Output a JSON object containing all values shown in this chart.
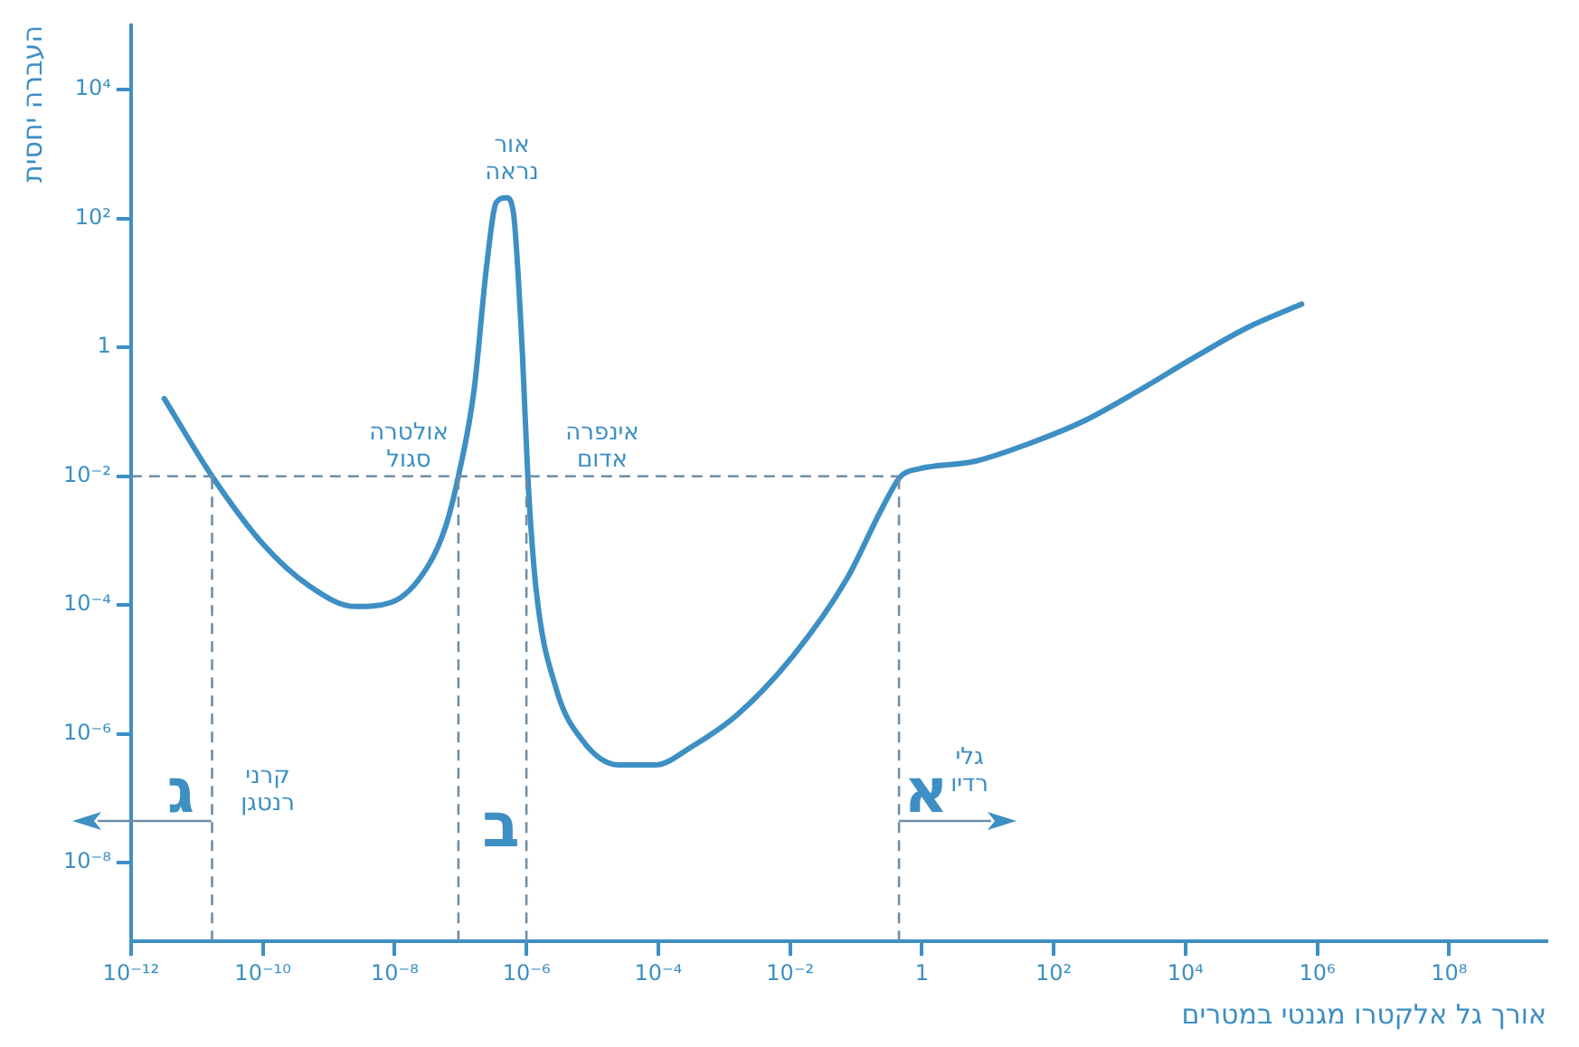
{
  "chart_data": {
    "type": "line",
    "xlabel": "אורך גל אלקטרו מגנטי במטרים",
    "ylabel": "העברה יחסית",
    "log": "xy",
    "grid": false,
    "marker": "none",
    "line_style": "solid",
    "xlim": [
      1e-12,
      3000000000.0
    ],
    "ylim": [
      6e-10,
      100000.0
    ],
    "xticks": [
      {
        "value": 1e-12,
        "label": "10⁻¹²"
      },
      {
        "value": 1e-10,
        "label": "10⁻¹⁰"
      },
      {
        "value": 1e-08,
        "label": "10⁻⁸"
      },
      {
        "value": 1e-06,
        "label": "10⁻⁶"
      },
      {
        "value": 0.0001,
        "label": "10⁻⁴"
      },
      {
        "value": 0.01,
        "label": "10⁻²"
      },
      1,
      {
        "value": 100,
        "label": "10²"
      },
      {
        "value": 10000,
        "label": "10⁴"
      },
      {
        "value": 1000000.0,
        "label": "10⁶"
      },
      {
        "value": 100000000.0,
        "label": "10⁸"
      }
    ],
    "yticks": [
      {
        "value": 1e-08,
        "label": "10⁻⁸"
      },
      {
        "value": 1e-06,
        "label": "10⁻⁶"
      },
      {
        "value": 0.0001,
        "label": "10⁻⁴"
      },
      {
        "value": 0.01,
        "label": "10⁻²"
      },
      1,
      {
        "value": 100,
        "label": "10²"
      },
      {
        "value": 10000,
        "label": "10⁴"
      }
    ],
    "x": [
      3.2e-12,
      1.7e-11,
      1e-10,
      5e-10,
      2.5e-09,
      8.9e-09,
      3.2e-08,
      6e-08,
      9.3e-08,
      1.6e-07,
      2.5e-07,
      3.5e-07,
      5e-07,
      6.3e-07,
      8.7e-07,
      1.05e-06,
      1.4e-06,
      2.8e-06,
      7.1e-06,
      2.5e-05,
      9.1e-05,
      0.00032,
      0.0016,
      0.011,
      0.072,
      0.25,
      0.48,
      0.89,
      6.3,
      42,
      280,
      1900,
      13000,
      85000,
      580000
    ],
    "series": [
      {
        "color": "#3d8fc4",
        "values": [
          0.16,
          0.01,
          0.00089,
          0.0002,
          9.5e-05,
          0.00011,
          0.0004,
          0.0017,
          0.01,
          0.21,
          19,
          180,
          210,
          130,
          0.79,
          0.01,
          0.00018,
          5.2e-06,
          7.9e-07,
          3.3e-07,
          3.3e-07,
          6.3e-07,
          2e-06,
          1.6e-05,
          0.00025,
          0.0032,
          0.01,
          0.013,
          0.017,
          0.032,
          0.071,
          0.21,
          0.68,
          2.0,
          4.7
        ]
      }
    ],
    "ref_lines": [
      {
        "axis": "y",
        "value": 0.01,
        "color": "#6f8fa6",
        "line_style": "dashed"
      },
      {
        "axis": "x",
        "value": 1.7e-11,
        "color": "#6f8fa6",
        "line_style": "dashed"
      },
      {
        "axis": "x",
        "value": 9.3e-08,
        "color": "#6f8fa6",
        "line_style": "dashed"
      },
      {
        "axis": "x",
        "value": 1e-06,
        "color": "#6f8fa6",
        "line_style": "dashed"
      },
      {
        "axis": "x",
        "value": 0.45,
        "color": "#6f8fa6",
        "line_style": "dashed"
      }
    ],
    "annotations": [
      "אור\nנראה",
      "אולטרה\nסגול",
      "אינפרה\nאדום",
      "קרני\nרנטגן",
      {
        "text": "גלי\nרדיו",
        "x": 0.45,
        "y": 4e-08
      },
      "ג",
      "ב",
      "א"
    ]
  }
}
